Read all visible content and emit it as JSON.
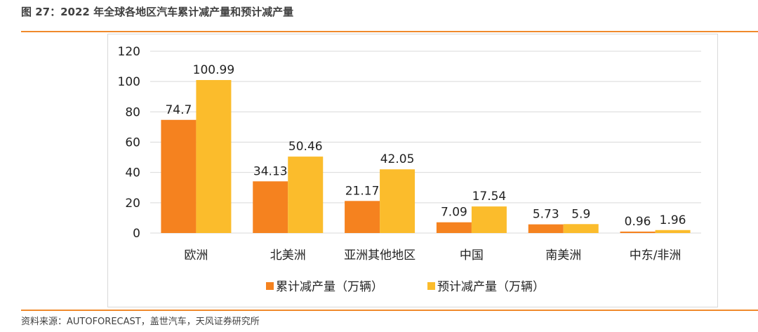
{
  "figure_title": "图 27：2022 年全球各地区汽车累计减产量和预计减产量",
  "source": "资料来源：AUTOFORECAST，盖世汽车，天风证券研究所",
  "colors": {
    "accent_rule": "#f08a2c",
    "series_1": "#f5821f",
    "series_2": "#fbbc2c",
    "gridline": "#d9d9d9",
    "text": "#222222"
  },
  "chart_data": {
    "type": "bar",
    "title": "",
    "xlabel": "",
    "ylabel": "",
    "categories": [
      "欧洲",
      "北美洲",
      "亚洲其他地区",
      "中国",
      "南美洲",
      "中东/非洲"
    ],
    "series": [
      {
        "name": "累计减产量（万辆）",
        "values": [
          74.7,
          34.13,
          21.17,
          7.09,
          5.73,
          0.96
        ],
        "labels": [
          "74.7",
          "34.13",
          "21.17",
          "7.09",
          "5.73",
          "0.96"
        ]
      },
      {
        "name": "预计减产量（万辆）",
        "values": [
          100.99,
          50.46,
          42.05,
          17.54,
          5.9,
          1.96
        ],
        "labels": [
          "100.99",
          "50.46",
          "42.05",
          "17.54",
          "5.9",
          "1.96"
        ]
      }
    ],
    "yticks": [
      "0",
      "20",
      "40",
      "60",
      "80",
      "100",
      "120"
    ],
    "ylim": [
      0,
      120
    ],
    "grid": true,
    "legend_position": "bottom"
  }
}
